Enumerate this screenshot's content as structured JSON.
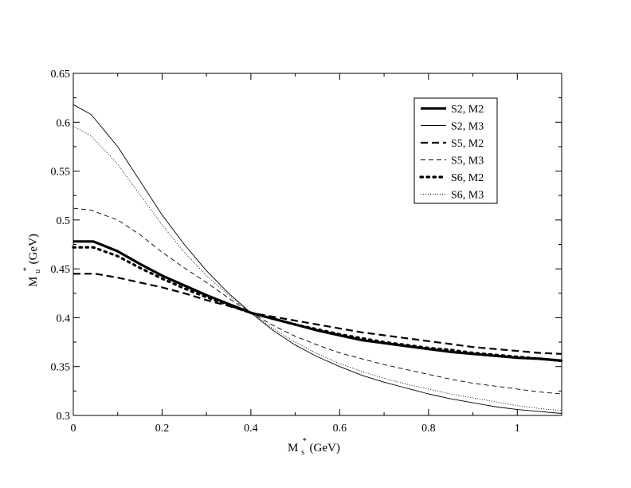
{
  "chart_data": {
    "type": "line",
    "xlabel": {
      "main": "M",
      "sup": "*",
      "sub": "s",
      "unit": " (GeV)"
    },
    "ylabel": {
      "main": "M",
      "sup": "*",
      "sub": "u",
      "unit": " (GeV)"
    },
    "xlim": [
      0,
      1.1
    ],
    "ylim": [
      0.3,
      0.65
    ],
    "x_ticks": [
      0,
      0.2,
      0.4,
      0.6,
      0.8,
      1
    ],
    "x_tick_labels": [
      "0",
      "0.2",
      "0.4",
      "0.6",
      "0.8",
      "1"
    ],
    "y_ticks": [
      0.3,
      0.35,
      0.4,
      0.45,
      0.5,
      0.55,
      0.6,
      0.65
    ],
    "y_tick_labels": [
      "0.3",
      "0.35",
      "0.4",
      "0.45",
      "0.5",
      "0.55",
      "0.6",
      "0.65"
    ],
    "grid": false,
    "legend_position": "top-right",
    "series": [
      {
        "name": "S2, M2",
        "style": "thick-solid",
        "points": [
          [
            0,
            0.478
          ],
          [
            0.045,
            0.478
          ],
          [
            0.1,
            0.468
          ],
          [
            0.15,
            0.455
          ],
          [
            0.2,
            0.443
          ],
          [
            0.25,
            0.433
          ],
          [
            0.3,
            0.423
          ],
          [
            0.35,
            0.414
          ],
          [
            0.4,
            0.405
          ],
          [
            0.45,
            0.399
          ],
          [
            0.5,
            0.393
          ],
          [
            0.55,
            0.387
          ],
          [
            0.6,
            0.382
          ],
          [
            0.65,
            0.377
          ],
          [
            0.7,
            0.374
          ],
          [
            0.75,
            0.371
          ],
          [
            0.8,
            0.368
          ],
          [
            0.85,
            0.365
          ],
          [
            0.9,
            0.363
          ],
          [
            0.95,
            0.361
          ],
          [
            1.0,
            0.359
          ],
          [
            1.05,
            0.358
          ],
          [
            1.1,
            0.356
          ]
        ]
      },
      {
        "name": "S2, M3",
        "style": "thin-solid",
        "points": [
          [
            0,
            0.618
          ],
          [
            0.04,
            0.608
          ],
          [
            0.1,
            0.575
          ],
          [
            0.15,
            0.54
          ],
          [
            0.2,
            0.505
          ],
          [
            0.25,
            0.475
          ],
          [
            0.3,
            0.448
          ],
          [
            0.35,
            0.425
          ],
          [
            0.4,
            0.405
          ],
          [
            0.45,
            0.387
          ],
          [
            0.5,
            0.372
          ],
          [
            0.55,
            0.36
          ],
          [
            0.6,
            0.35
          ],
          [
            0.65,
            0.341
          ],
          [
            0.7,
            0.334
          ],
          [
            0.75,
            0.328
          ],
          [
            0.8,
            0.322
          ],
          [
            0.85,
            0.317
          ],
          [
            0.9,
            0.313
          ],
          [
            0.95,
            0.309
          ],
          [
            1.0,
            0.306
          ],
          [
            1.05,
            0.304
          ],
          [
            1.1,
            0.302
          ]
        ]
      },
      {
        "name": "S5, M2",
        "style": "thick-dashed",
        "points": [
          [
            0,
            0.445
          ],
          [
            0.05,
            0.445
          ],
          [
            0.1,
            0.441
          ],
          [
            0.15,
            0.436
          ],
          [
            0.2,
            0.431
          ],
          [
            0.25,
            0.425
          ],
          [
            0.3,
            0.418
          ],
          [
            0.35,
            0.412
          ],
          [
            0.4,
            0.405
          ],
          [
            0.45,
            0.401
          ],
          [
            0.5,
            0.397
          ],
          [
            0.55,
            0.393
          ],
          [
            0.6,
            0.389
          ],
          [
            0.65,
            0.385
          ],
          [
            0.7,
            0.382
          ],
          [
            0.75,
            0.379
          ],
          [
            0.8,
            0.376
          ],
          [
            0.85,
            0.373
          ],
          [
            0.9,
            0.37
          ],
          [
            0.95,
            0.368
          ],
          [
            1.0,
            0.366
          ],
          [
            1.05,
            0.364
          ],
          [
            1.1,
            0.363
          ]
        ]
      },
      {
        "name": "S5, M3",
        "style": "thin-dashed",
        "points": [
          [
            0,
            0.512
          ],
          [
            0.04,
            0.51
          ],
          [
            0.1,
            0.5
          ],
          [
            0.15,
            0.485
          ],
          [
            0.2,
            0.467
          ],
          [
            0.25,
            0.451
          ],
          [
            0.3,
            0.436
          ],
          [
            0.35,
            0.42
          ],
          [
            0.4,
            0.405
          ],
          [
            0.45,
            0.392
          ],
          [
            0.5,
            0.381
          ],
          [
            0.55,
            0.372
          ],
          [
            0.6,
            0.364
          ],
          [
            0.65,
            0.358
          ],
          [
            0.7,
            0.352
          ],
          [
            0.75,
            0.347
          ],
          [
            0.8,
            0.342
          ],
          [
            0.85,
            0.337
          ],
          [
            0.9,
            0.333
          ],
          [
            0.95,
            0.33
          ],
          [
            1.0,
            0.327
          ],
          [
            1.05,
            0.324
          ],
          [
            1.1,
            0.322
          ]
        ]
      },
      {
        "name": "S6, M2",
        "style": "thick-dotted",
        "points": [
          [
            0,
            0.472
          ],
          [
            0.045,
            0.472
          ],
          [
            0.1,
            0.463
          ],
          [
            0.15,
            0.451
          ],
          [
            0.2,
            0.44
          ],
          [
            0.25,
            0.43
          ],
          [
            0.3,
            0.421
          ],
          [
            0.35,
            0.413
          ],
          [
            0.4,
            0.405
          ],
          [
            0.45,
            0.399
          ],
          [
            0.5,
            0.393
          ],
          [
            0.55,
            0.388
          ],
          [
            0.6,
            0.383
          ],
          [
            0.65,
            0.379
          ],
          [
            0.7,
            0.375
          ],
          [
            0.75,
            0.372
          ],
          [
            0.8,
            0.369
          ],
          [
            0.85,
            0.367
          ],
          [
            0.9,
            0.364
          ],
          [
            0.95,
            0.362
          ],
          [
            1.0,
            0.36
          ],
          [
            1.05,
            0.358
          ],
          [
            1.1,
            0.356
          ]
        ]
      },
      {
        "name": "S6, M3",
        "style": "thin-dotted",
        "points": [
          [
            0,
            0.596
          ],
          [
            0.04,
            0.586
          ],
          [
            0.1,
            0.557
          ],
          [
            0.15,
            0.526
          ],
          [
            0.2,
            0.495
          ],
          [
            0.25,
            0.467
          ],
          [
            0.3,
            0.443
          ],
          [
            0.35,
            0.423
          ],
          [
            0.4,
            0.405
          ],
          [
            0.45,
            0.389
          ],
          [
            0.5,
            0.375
          ],
          [
            0.55,
            0.363
          ],
          [
            0.6,
            0.353
          ],
          [
            0.65,
            0.345
          ],
          [
            0.7,
            0.338
          ],
          [
            0.75,
            0.332
          ],
          [
            0.8,
            0.327
          ],
          [
            0.85,
            0.322
          ],
          [
            0.9,
            0.318
          ],
          [
            0.95,
            0.314
          ],
          [
            1.0,
            0.31
          ],
          [
            1.05,
            0.307
          ],
          [
            1.1,
            0.305
          ]
        ]
      }
    ]
  }
}
